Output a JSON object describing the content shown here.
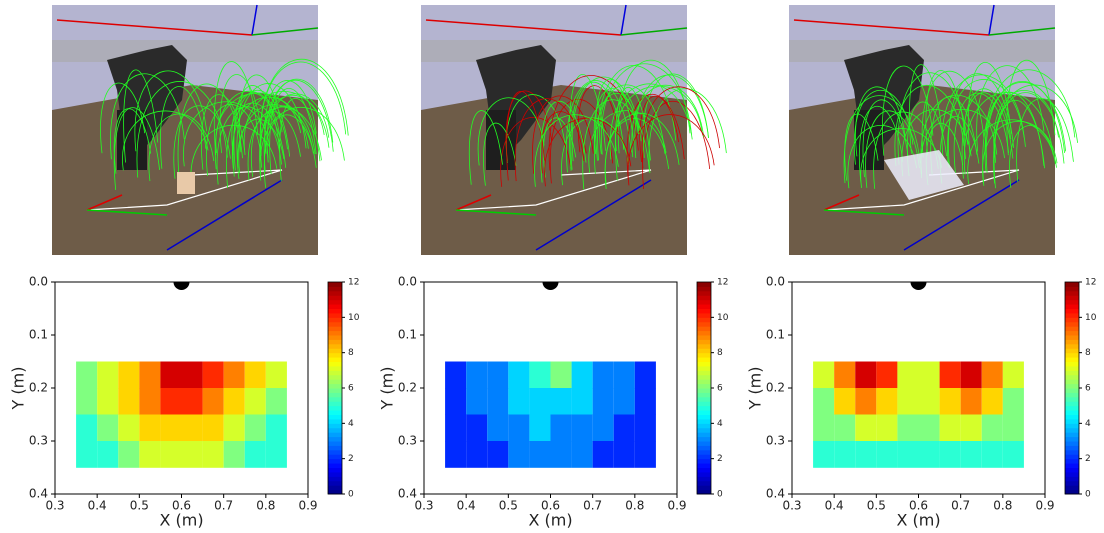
{
  "chart_data": [
    {
      "type": "heatmap",
      "xlabel": "X (m)",
      "ylabel": "Y (m)",
      "xlim": [
        0.3,
        0.9
      ],
      "ylim": [
        0.4,
        0.0
      ],
      "xticks": [
        0.3,
        0.4,
        0.5,
        0.6,
        0.7,
        0.8,
        0.9
      ],
      "yticks": [
        {
          "value": 0,
          "label": "0.0"
        },
        0.1,
        0.2,
        0.3,
        0.4
      ],
      "xbins": [
        0.35,
        0.4,
        0.45,
        0.5,
        0.55,
        0.6,
        0.65,
        0.7,
        0.75,
        0.8,
        0.85
      ],
      "ybins": [
        0.15,
        0.2,
        0.25,
        0.3,
        0.35
      ],
      "values": [
        [
          6,
          7,
          8,
          9,
          11,
          11,
          10,
          9,
          8,
          7
        ],
        [
          6,
          7,
          8,
          9,
          10,
          10,
          9,
          8,
          7,
          6
        ],
        [
          5,
          6,
          7,
          8,
          8,
          8,
          8,
          7,
          6,
          5
        ],
        [
          5,
          5,
          6,
          7,
          7,
          7,
          7,
          6,
          5,
          5
        ]
      ],
      "clim": [
        0,
        12
      ],
      "cticks": [
        0,
        2,
        4,
        6,
        8,
        10,
        12
      ],
      "colormap": "jet",
      "base_marker": {
        "x": 0.6,
        "y": 0
      }
    },
    {
      "type": "heatmap",
      "xlabel": "X (m)",
      "ylabel": "Y (m)",
      "xlim": [
        0.3,
        0.9
      ],
      "ylim": [
        0.4,
        0.0
      ],
      "xticks": [
        0.3,
        0.4,
        0.5,
        0.6,
        0.7,
        0.8,
        0.9
      ],
      "yticks": [
        {
          "value": 0,
          "label": "0.0"
        },
        0.1,
        0.2,
        0.3,
        0.4
      ],
      "xbins": [
        0.35,
        0.4,
        0.45,
        0.5,
        0.55,
        0.6,
        0.65,
        0.7,
        0.75,
        0.8,
        0.85
      ],
      "ybins": [
        0.15,
        0.2,
        0.25,
        0.3,
        0.35
      ],
      "values": [
        [
          2,
          3,
          3,
          4,
          5,
          6,
          4,
          3,
          3,
          2
        ],
        [
          2,
          3,
          3,
          4,
          4,
          4,
          4,
          3,
          3,
          2
        ],
        [
          2,
          2,
          3,
          3,
          4,
          3,
          3,
          3,
          2,
          2
        ],
        [
          2,
          2,
          2,
          3,
          3,
          3,
          3,
          2,
          2,
          2
        ]
      ],
      "clim": [
        0,
        12
      ],
      "cticks": [
        0,
        2,
        4,
        6,
        8,
        10,
        12
      ],
      "colormap": "jet",
      "base_marker": {
        "x": 0.6,
        "y": 0
      }
    },
    {
      "type": "heatmap",
      "xlabel": "X (m)",
      "ylabel": "Y (m)",
      "xlim": [
        0.3,
        0.9
      ],
      "ylim": [
        0.4,
        0.0
      ],
      "xticks": [
        0.3,
        0.4,
        0.5,
        0.6,
        0.7,
        0.8,
        0.9
      ],
      "yticks": [
        {
          "value": 0,
          "label": "0.0"
        },
        0.1,
        0.2,
        0.3,
        0.4
      ],
      "xbins": [
        0.35,
        0.4,
        0.45,
        0.5,
        0.55,
        0.6,
        0.65,
        0.7,
        0.75,
        0.8,
        0.85
      ],
      "ybins": [
        0.15,
        0.2,
        0.25,
        0.3,
        0.35
      ],
      "values": [
        [
          7,
          9,
          11,
          10,
          7,
          7,
          10,
          11,
          9,
          7
        ],
        [
          6,
          8,
          9,
          8,
          7,
          7,
          8,
          9,
          8,
          6
        ],
        [
          6,
          6,
          7,
          7,
          6,
          6,
          7,
          7,
          6,
          6
        ],
        [
          5,
          5,
          5,
          5,
          5,
          5,
          5,
          5,
          5,
          5
        ]
      ],
      "clim": [
        0,
        12
      ],
      "cticks": [
        0,
        2,
        4,
        6,
        8,
        10,
        12
      ],
      "colormap": "jet",
      "base_marker": {
        "x": 0.6,
        "y": 0
      }
    }
  ]
}
